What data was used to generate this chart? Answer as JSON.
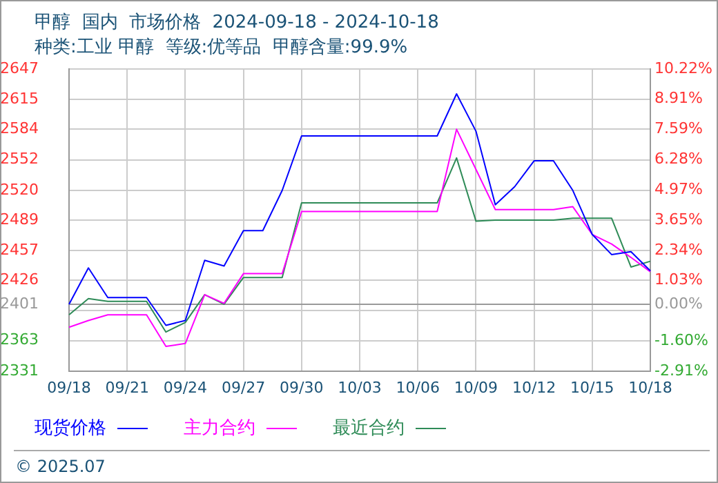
{
  "chart_data": {
    "type": "line",
    "title": "甲醇  国内  市场价格  2024-09-18 - 2024-10-18",
    "subtitle": "种类:工业 甲醇  等级:优等品  甲醇含量:99.9%",
    "categories": [
      "09/18",
      null,
      null,
      "09/21",
      null,
      null,
      "09/24",
      null,
      null,
      "09/27",
      null,
      null,
      "09/30",
      null,
      null,
      "10/03",
      null,
      null,
      "10/06",
      null,
      null,
      "10/09",
      null,
      null,
      "10/12",
      null,
      null,
      "10/15",
      null,
      null,
      "10/18"
    ],
    "series": [
      {
        "name": "现货价格",
        "color": "#0000ff",
        "values": [
          2401,
          2439,
          2408,
          2408,
          2408,
          2379,
          2384,
          2447,
          2441,
          2478,
          2478,
          2520,
          2577,
          2577,
          2577,
          2577,
          2577,
          2577,
          2577,
          2577,
          2621,
          2582,
          2505,
          2524,
          2551,
          2551,
          2520,
          2474,
          2453,
          2456,
          2436
        ]
      },
      {
        "name": "主力合约",
        "color": "#ff00ff",
        "values": [
          2377,
          2384,
          2390,
          2390,
          2390,
          2357,
          2360,
          2411,
          2402,
          2433,
          2433,
          2433,
          2498,
          2498,
          2498,
          2498,
          2498,
          2498,
          2498,
          2498,
          2584,
          2542,
          2500,
          2500,
          2500,
          2500,
          2503,
          2474,
          2464,
          2450,
          2435
        ]
      },
      {
        "name": "最近合约",
        "color": "#2e8b57",
        "values": [
          2390,
          2407,
          2404,
          2404,
          2404,
          2372,
          2382,
          2411,
          2401,
          2429,
          2429,
          2429,
          2507,
          2507,
          2507,
          2507,
          2507,
          2507,
          2507,
          2507,
          2554,
          2488,
          2489,
          2489,
          2489,
          2489,
          2491,
          2491,
          2491,
          2440,
          2446
        ]
      }
    ],
    "ylim": [
      2331,
      2647
    ],
    "yticks": [
      2331,
      2363,
      {
        "value": 2394.2,
        "label": null
      },
      2401,
      2426,
      2457,
      2489,
      2520,
      2552,
      2584,
      2615,
      2647
    ],
    "y2lim": [
      -2.91,
      10.22
    ],
    "y2ticks": [
      {
        "value": -2.91,
        "label": "-2.91%"
      },
      {
        "value": -1.6,
        "label": "-1.60%"
      },
      {
        "value": 0,
        "label": "0.00%"
      },
      {
        "value": 1.03,
        "label": "1.03%"
      },
      {
        "value": 2.34,
        "label": "2.34%"
      },
      {
        "value": 3.65,
        "label": "3.65%"
      },
      {
        "value": 4.97,
        "label": "4.97%"
      },
      {
        "value": 6.28,
        "label": "6.28%"
      },
      {
        "value": 7.59,
        "label": "7.59%"
      },
      {
        "value": 8.91,
        "label": "8.91%"
      },
      {
        "value": 10.22,
        "label": "10.22%"
      }
    ],
    "ref_lines": [
      {
        "axis": "y",
        "value": 2401,
        "color": "#999999"
      }
    ],
    "grid": true,
    "legend": "bottom",
    "marker": "none",
    "line_style": "solid",
    "annotations": [
      "© 2025.07"
    ]
  }
}
